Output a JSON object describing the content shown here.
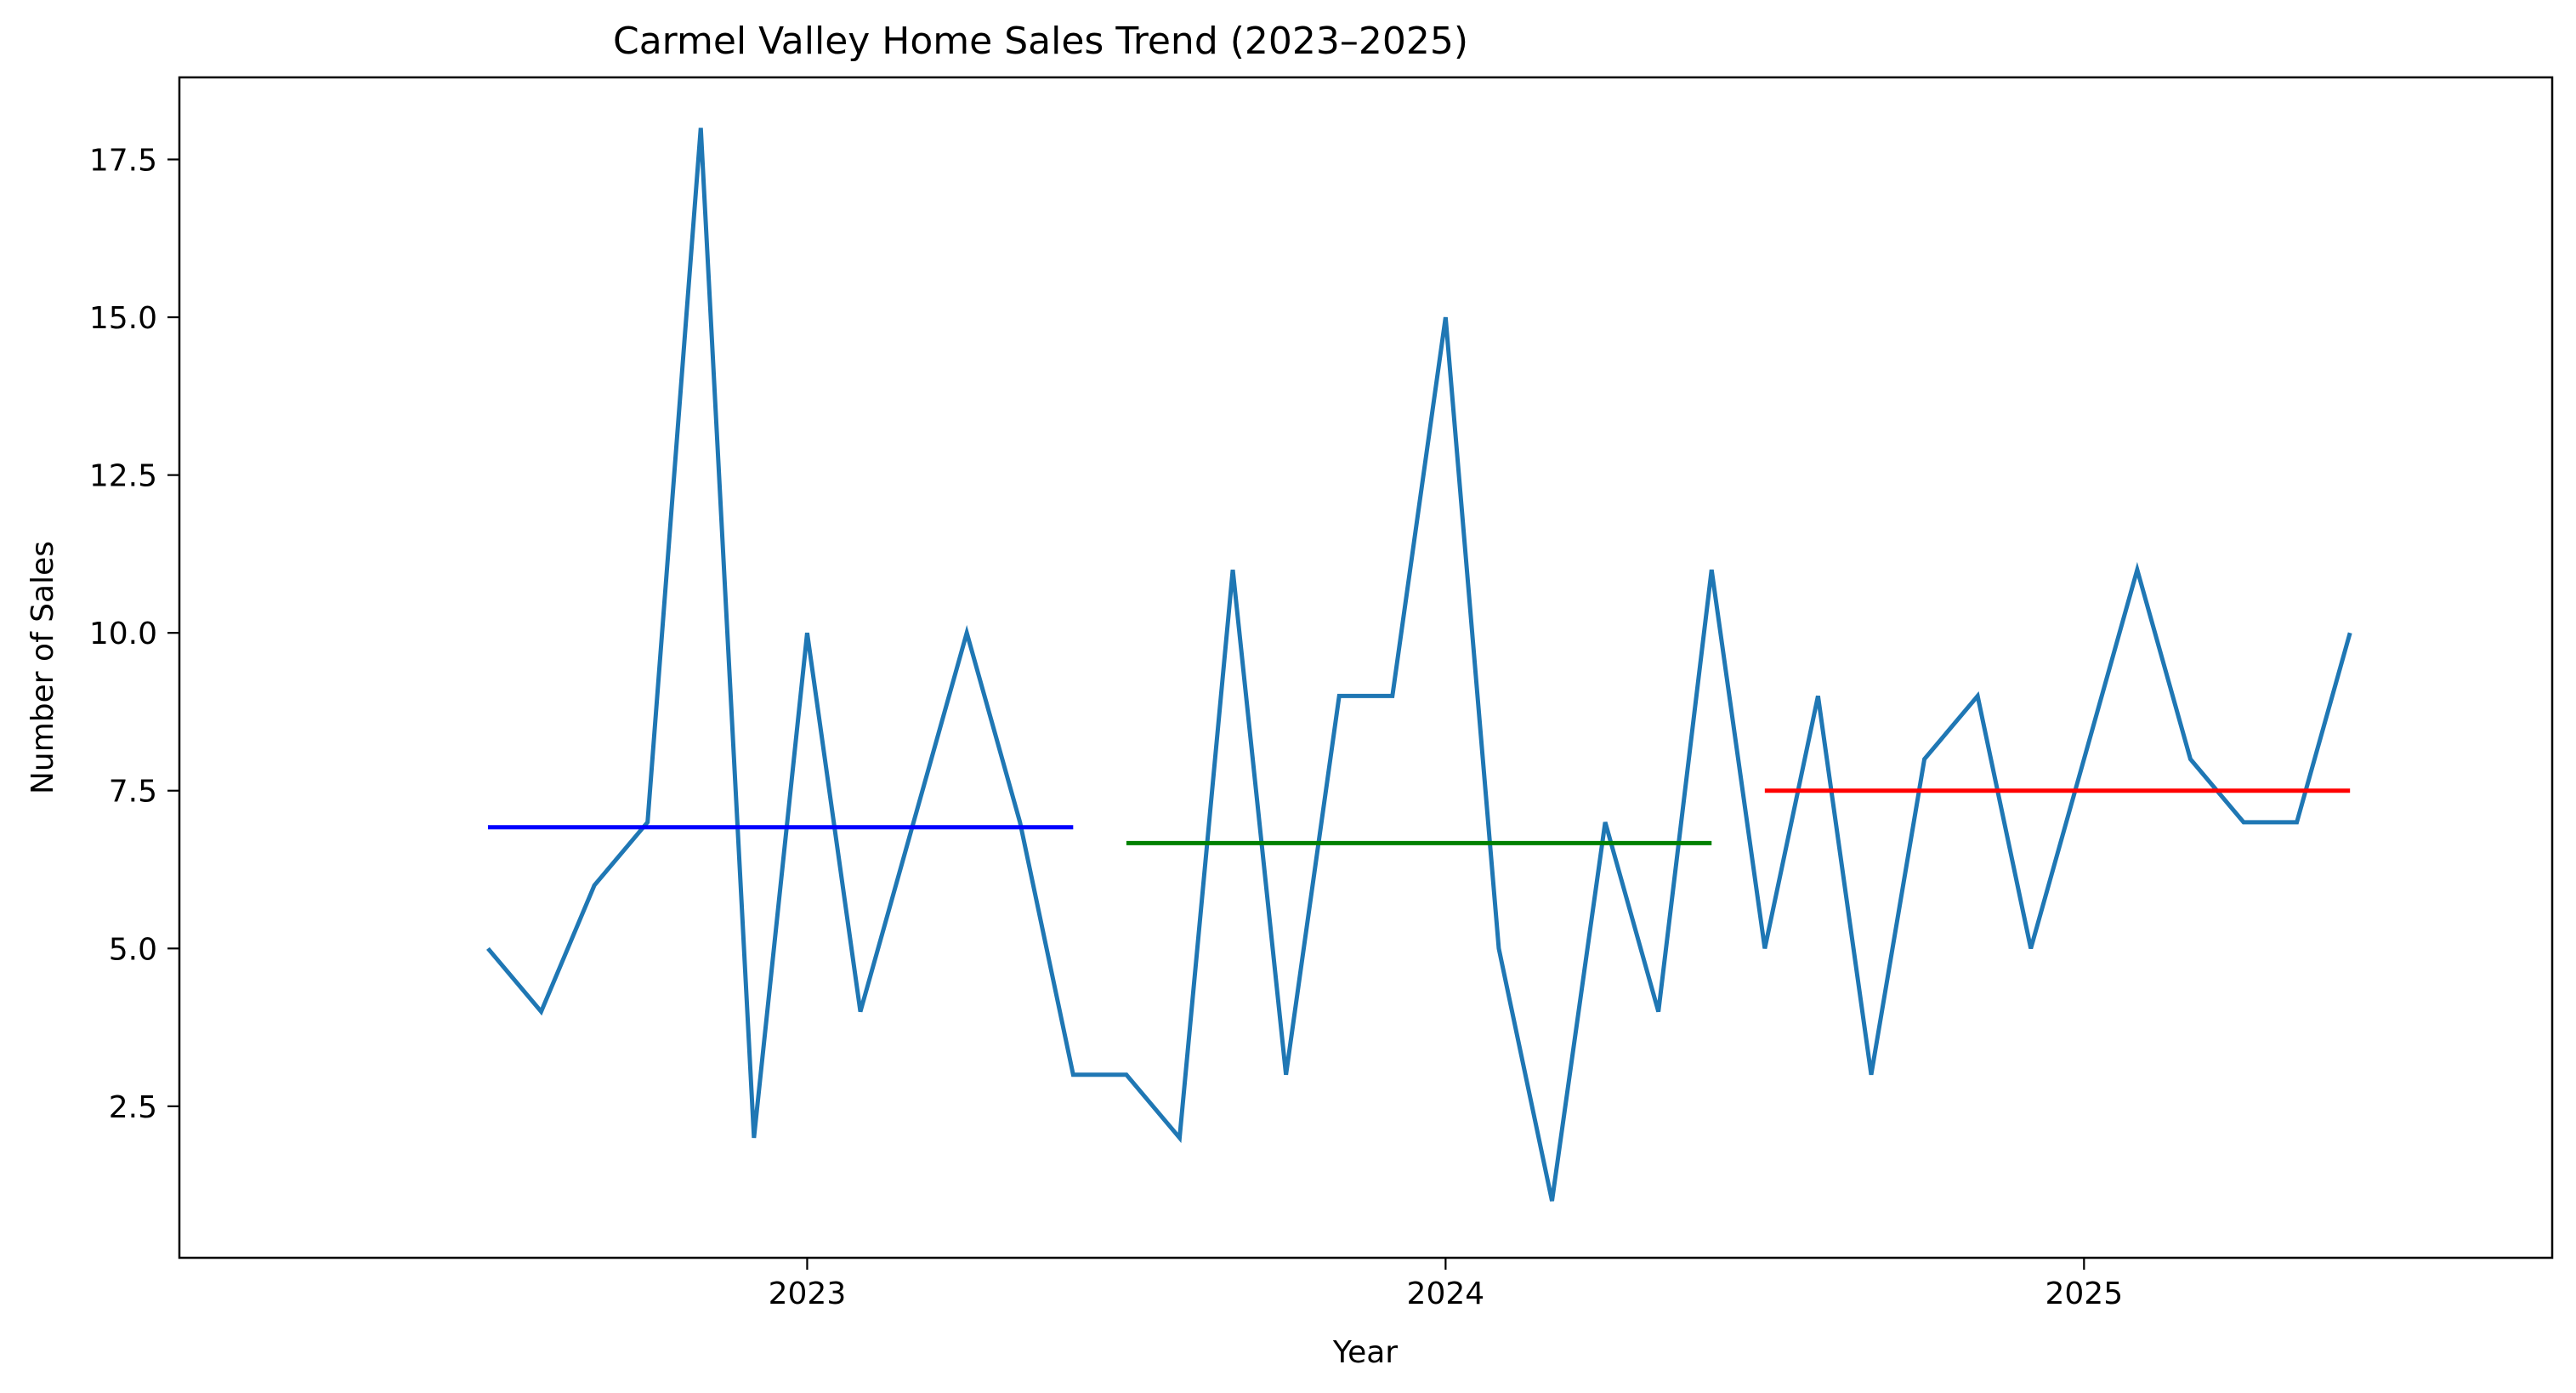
{
  "chart_data": {
    "type": "line",
    "title": "Carmel Valley Home Sales Trend (2023–2025)",
    "xlabel": "Year",
    "ylabel": "Number of Sales",
    "x_ticks": [
      {
        "label": "2023",
        "x": 6
      },
      {
        "label": "2024",
        "x": 18
      },
      {
        "label": "2025",
        "x": 30
      }
    ],
    "y_ticks": [
      {
        "label": "2.5",
        "value": 2.5
      },
      {
        "label": "5.0",
        "value": 5
      },
      {
        "label": "7.5",
        "value": 7.5
      },
      {
        "label": "10.0",
        "value": 10
      },
      {
        "label": "12.5",
        "value": 12.5
      },
      {
        "label": "15.0",
        "value": 15
      },
      {
        "label": "17.5",
        "value": 17.5
      }
    ],
    "xlim": [
      -5.8,
      38.8
    ],
    "ylim": [
      0.1,
      18.8
    ],
    "grid": false,
    "series": [
      {
        "color": "#1f77b4",
        "points": [
          {
            "x": 0,
            "y": 5
          },
          {
            "x": 1,
            "y": 4
          },
          {
            "x": 2,
            "y": 6
          },
          {
            "x": 3,
            "y": 7
          },
          {
            "x": 4,
            "y": 18
          },
          {
            "x": 5,
            "y": 2
          },
          {
            "x": 6,
            "y": 10
          },
          {
            "x": 7,
            "y": 4
          },
          {
            "x": 8,
            "y": 7
          },
          {
            "x": 9,
            "y": 10
          },
          {
            "x": 10,
            "y": 7
          },
          {
            "x": 11,
            "y": 3
          },
          {
            "x": 12,
            "y": 3
          },
          {
            "x": 13,
            "y": 2
          },
          {
            "x": 14,
            "y": 11
          },
          {
            "x": 15,
            "y": 3
          },
          {
            "x": 16,
            "y": 9
          },
          {
            "x": 17,
            "y": 9
          },
          {
            "x": 18,
            "y": 15
          },
          {
            "x": 19,
            "y": 5
          },
          {
            "x": 20,
            "y": 1
          },
          {
            "x": 21,
            "y": 7
          },
          {
            "x": 22,
            "y": 4
          },
          {
            "x": 23,
            "y": 11
          },
          {
            "x": 24,
            "y": 5
          },
          {
            "x": 25,
            "y": 9
          },
          {
            "x": 26,
            "y": 3
          },
          {
            "x": 27,
            "y": 8
          },
          {
            "x": 28,
            "y": 9
          },
          {
            "x": 29,
            "y": 5
          },
          {
            "x": 30,
            "y": 8
          },
          {
            "x": 31,
            "y": 11
          },
          {
            "x": 32,
            "y": 8
          },
          {
            "x": 33,
            "y": 7
          },
          {
            "x": 34,
            "y": 7
          },
          {
            "x": 35,
            "y": 10
          }
        ]
      }
    ],
    "reference_lines": [
      {
        "x_start": 0,
        "x_end": 11,
        "y": 6.92,
        "color": "#0000ff"
      },
      {
        "x_start": 12,
        "x_end": 23,
        "y": 6.67,
        "color": "#008000"
      },
      {
        "x_start": 24,
        "x_end": 35,
        "y": 7.5,
        "color": "#ff0000"
      }
    ]
  }
}
